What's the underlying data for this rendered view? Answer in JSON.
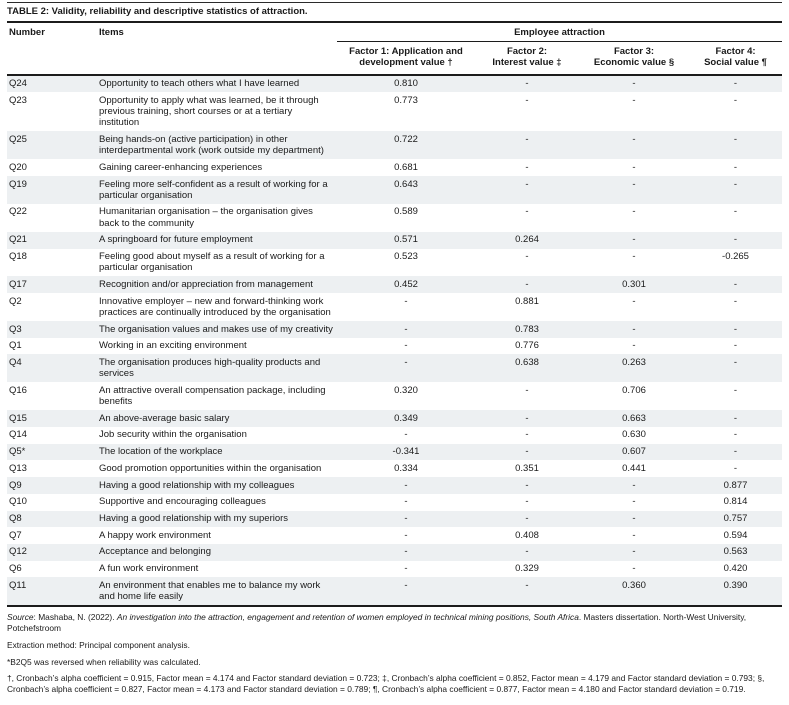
{
  "title": "TABLE 2: Validity, reliability and descriptive statistics of attraction.",
  "table": {
    "col_headers": {
      "number": "Number",
      "items": "Items",
      "group": "Employee attraction",
      "factors": [
        {
          "line1": "Factor 1: Application and",
          "line2": "development value †"
        },
        {
          "line1": "Factor 2:",
          "line2": "Interest value ‡"
        },
        {
          "line1": "Factor 3:",
          "line2": "Economic value §"
        },
        {
          "line1": "Factor 4:",
          "line2": "Social value ¶"
        }
      ]
    },
    "rows": [
      {
        "number": "Q24",
        "item": "Opportunity to teach others what I have learned",
        "f1": "0.810",
        "f2": "-",
        "f3": "-",
        "f4": "-"
      },
      {
        "number": "Q23",
        "item": "Opportunity to apply what was learned, be it through previous training, short courses or at a tertiary institution",
        "f1": "0.773",
        "f2": "-",
        "f3": "-",
        "f4": "-"
      },
      {
        "number": "Q25",
        "item": "Being hands-on (active participation) in other interdepartmental work (work outside my department)",
        "f1": "0.722",
        "f2": "-",
        "f3": "-",
        "f4": "-"
      },
      {
        "number": "Q20",
        "item": "Gaining career-enhancing experiences",
        "f1": "0.681",
        "f2": "-",
        "f3": "-",
        "f4": "-"
      },
      {
        "number": "Q19",
        "item": "Feeling more self-confident as a result of working for a particular organisation",
        "f1": "0.643",
        "f2": "-",
        "f3": "-",
        "f4": "-"
      },
      {
        "number": "Q22",
        "item": "Humanitarian organisation – the organisation gives back to the community",
        "f1": "0.589",
        "f2": "-",
        "f3": "-",
        "f4": "-"
      },
      {
        "number": "Q21",
        "item": "A springboard for future employment",
        "f1": "0.571",
        "f2": "0.264",
        "f3": "-",
        "f4": "-"
      },
      {
        "number": "Q18",
        "item": "Feeling good about myself as a result of working for a particular organisation",
        "f1": "0.523",
        "f2": "-",
        "f3": "-",
        "f4": "-0.265"
      },
      {
        "number": "Q17",
        "item": "Recognition and/or appreciation from management",
        "f1": "0.452",
        "f2": "-",
        "f3": "0.301",
        "f4": "-"
      },
      {
        "number": "Q2",
        "item": "Innovative employer – new and forward-thinking work practices are continually introduced by the organisation",
        "f1": "-",
        "f2": "0.881",
        "f3": "-",
        "f4": "-"
      },
      {
        "number": "Q3",
        "item": "The organisation values and makes use of my creativity",
        "f1": "-",
        "f2": "0.783",
        "f3": "-",
        "f4": "-"
      },
      {
        "number": "Q1",
        "item": "Working in an exciting environment",
        "f1": "-",
        "f2": "0.776",
        "f3": "-",
        "f4": "-"
      },
      {
        "number": "Q4",
        "item": "The organisation produces high-quality products and services",
        "f1": "-",
        "f2": "0.638",
        "f3": "0.263",
        "f4": "-"
      },
      {
        "number": "Q16",
        "item": "An attractive overall compensation package, including benefits",
        "f1": "0.320",
        "f2": "-",
        "f3": "0.706",
        "f4": "-"
      },
      {
        "number": "Q15",
        "item": "An above-average basic salary",
        "f1": "0.349",
        "f2": "-",
        "f3": "0.663",
        "f4": "-"
      },
      {
        "number": "Q14",
        "item": "Job security within the organisation",
        "f1": "-",
        "f2": "-",
        "f3": "0.630",
        "f4": "-"
      },
      {
        "number": "Q5*",
        "item": "The location of the workplace",
        "f1": "-0.341",
        "f2": "-",
        "f3": "0.607",
        "f4": "-"
      },
      {
        "number": "Q13",
        "item": "Good promotion opportunities within the organisation",
        "f1": "0.334",
        "f2": "0.351",
        "f3": "0.441",
        "f4": "-"
      },
      {
        "number": "Q9",
        "item": "Having a good relationship with my colleagues",
        "f1": "-",
        "f2": "-",
        "f3": "-",
        "f4": "0.877"
      },
      {
        "number": "Q10",
        "item": "Supportive and encouraging colleagues",
        "f1": "-",
        "f2": "-",
        "f3": "-",
        "f4": "0.814"
      },
      {
        "number": "Q8",
        "item": "Having a good relationship with my superiors",
        "f1": "-",
        "f2": "-",
        "f3": "-",
        "f4": "0.757"
      },
      {
        "number": "Q7",
        "item": "A happy work environment",
        "f1": "-",
        "f2": "0.408",
        "f3": "-",
        "f4": "0.594"
      },
      {
        "number": "Q12",
        "item": "Acceptance and belonging",
        "f1": "-",
        "f2": "-",
        "f3": "-",
        "f4": "0.563"
      },
      {
        "number": "Q6",
        "item": "A fun work environment",
        "f1": "-",
        "f2": "0.329",
        "f3": "-",
        "f4": "0.420"
      },
      {
        "number": "Q11",
        "item": "An environment that enables me to balance my work and home life easily",
        "f1": "-",
        "f2": "-",
        "f3": "0.360",
        "f4": "0.390"
      }
    ]
  },
  "footnotes": {
    "source_label": "Source",
    "source_text_1": ": Mashaba, N. (2022). ",
    "source_title_italic": "An investigation into the attraction, engagement and retention of women employed in technical mining positions, South Africa",
    "source_text_2": ". Masters dissertation. North-West University, Potchefstroom",
    "extraction": "Extraction method: Principal component analysis.",
    "reversed": "*B2Q5 was reversed when reliability was calculated.",
    "cronbach": "†, Cronbach’s alpha coefficient = 0.915, Factor mean = 4.174 and Factor standard deviation = 0.723; ‡, Cronbach’s alpha coefficient = 0.852, Factor mean = 4.179 and Factor standard deviation = 0.793; §, Cronbach’s alpha coefficient = 0.827, Factor mean = 4.173 and Factor standard deviation = 0.789; ¶, Cronbach’s alpha coefficient = 0.877, Factor mean = 4.180 and Factor standard deviation = 0.719."
  },
  "colors": {
    "row_shade": "#edf0f2",
    "rule_dark": "#1c1c1c",
    "text": "#1a1a1a"
  }
}
